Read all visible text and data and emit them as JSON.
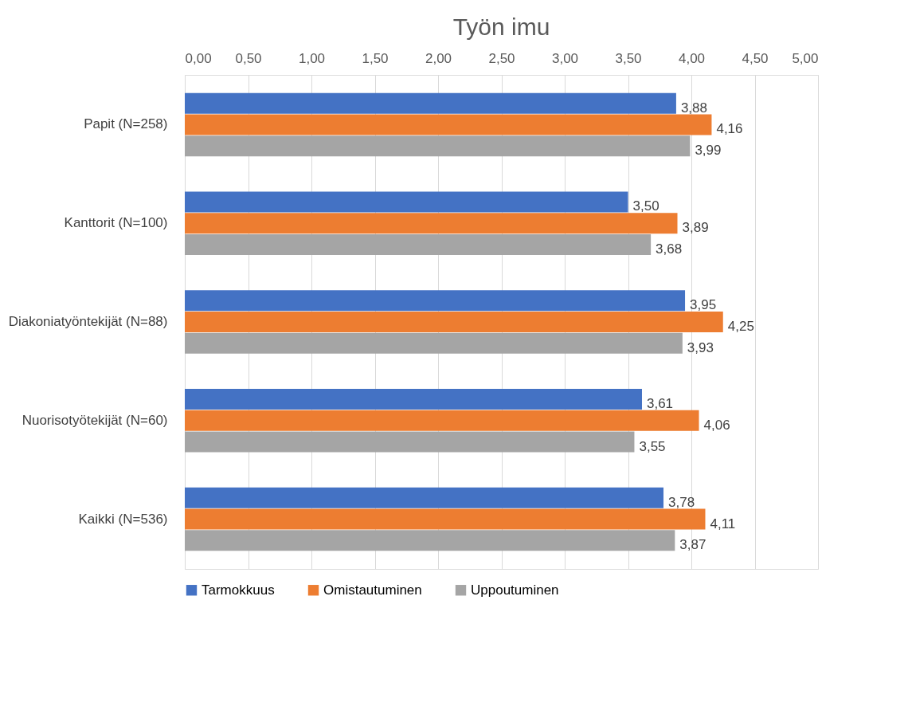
{
  "chart_data": {
    "type": "bar",
    "orientation": "horizontal",
    "title": "Työn imu",
    "categories": [
      "Papit (N=258)",
      "Kanttorit (N=100)",
      "Diakoniatyöntekijät (N=88)",
      "Nuorisotyötekijät (N=60)",
      "Kaikki (N=536)"
    ],
    "series": [
      {
        "name": "Tarmokkuus",
        "color": "#4472c4",
        "values": [
          3.88,
          3.5,
          3.95,
          3.61,
          3.78
        ],
        "value_labels": [
          "3,88",
          "3,50",
          "3,95",
          "3,61",
          "3,78"
        ]
      },
      {
        "name": "Omistautuminen",
        "color": "#ed7d31",
        "values": [
          4.16,
          3.89,
          4.25,
          4.06,
          4.11
        ],
        "value_labels": [
          "4,16",
          "3,89",
          "4,25",
          "4,06",
          "4,11"
        ]
      },
      {
        "name": "Uppoutuminen",
        "color": "#a5a5a5",
        "values": [
          3.99,
          3.68,
          3.93,
          3.55,
          3.87
        ],
        "value_labels": [
          "3,99",
          "3,68",
          "3,93",
          "3,55",
          "3,87"
        ]
      }
    ],
    "xlim": [
      0,
      5
    ],
    "xticks": [
      {
        "value": 0,
        "label": "0,00"
      },
      {
        "value": 0.5,
        "label": "0,50"
      },
      {
        "value": 1,
        "label": "1,00"
      },
      {
        "value": 1.5,
        "label": "1,50"
      },
      {
        "value": 2,
        "label": "2,00"
      },
      {
        "value": 2.5,
        "label": "2,50"
      },
      {
        "value": 3,
        "label": "3,00"
      },
      {
        "value": 3.5,
        "label": "3,50"
      },
      {
        "value": 4,
        "label": "4,00"
      },
      {
        "value": 4.5,
        "label": "4,50"
      },
      {
        "value": 5,
        "label": "5,00"
      }
    ],
    "grid": "x",
    "legend": "bottom"
  }
}
